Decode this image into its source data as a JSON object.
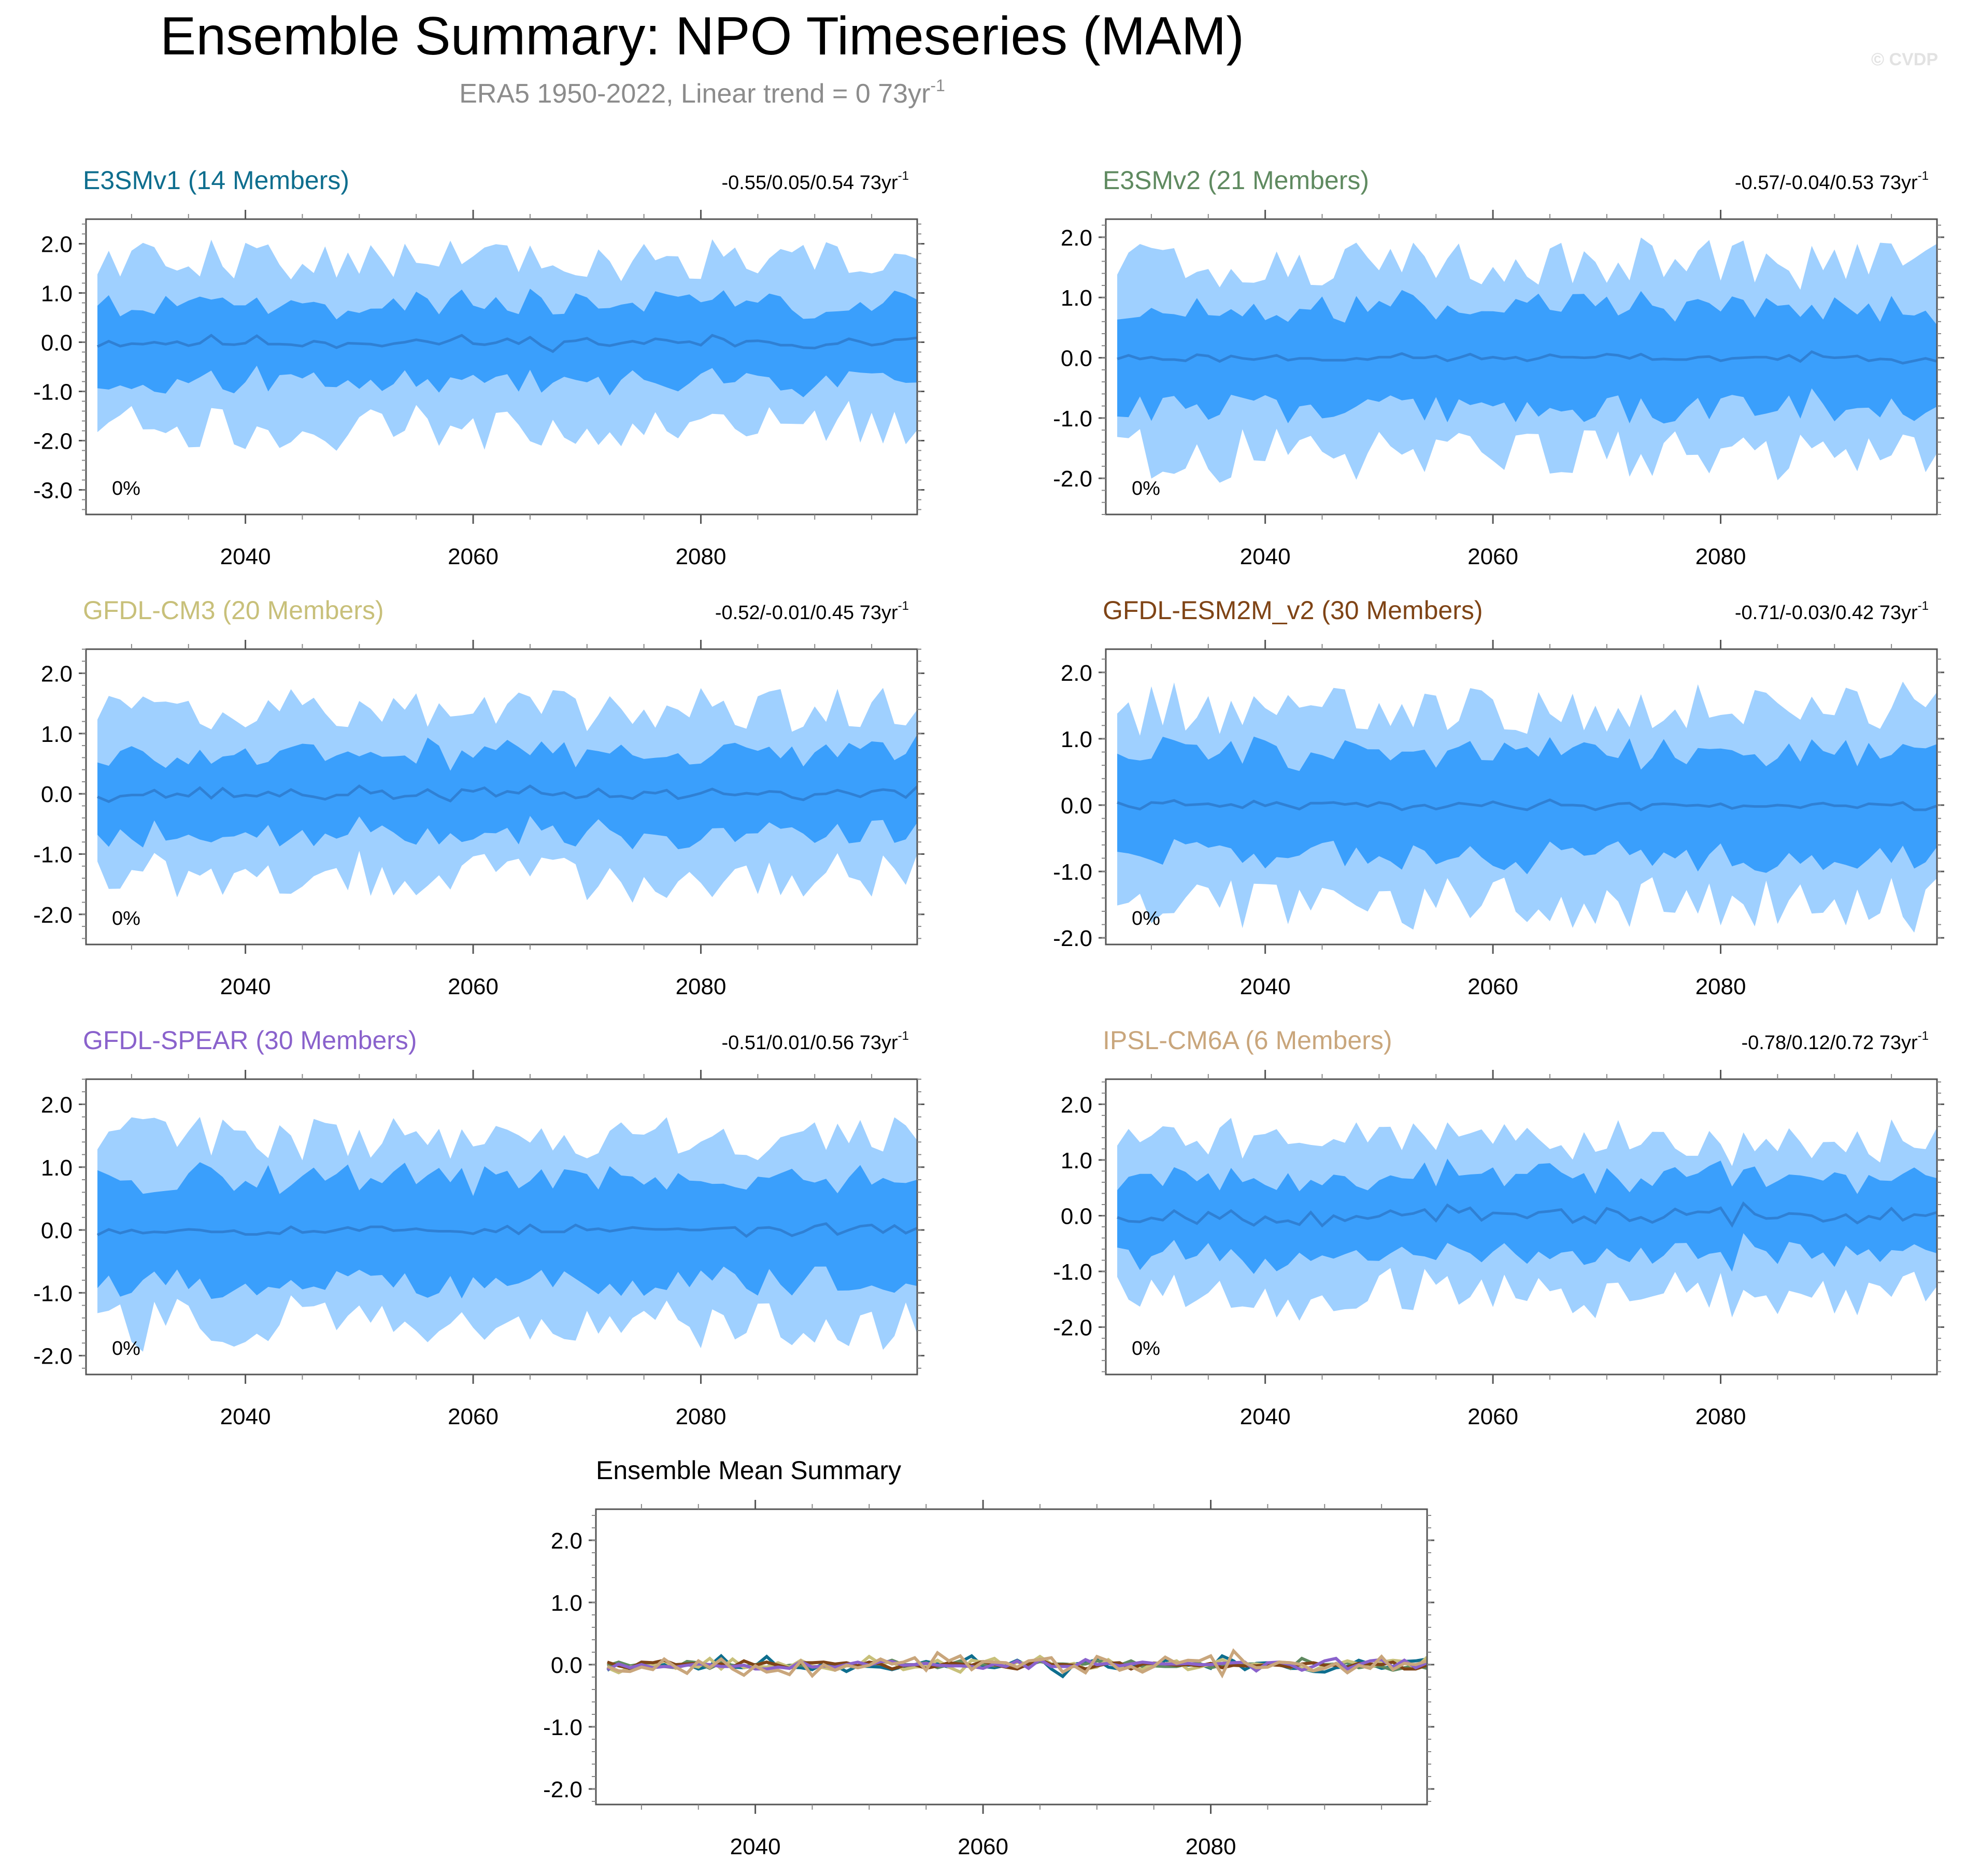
{
  "title": "Ensemble Summary: NPO Timeseries (MAM)",
  "subtitle": "ERA5 1950-2022, Linear trend = 0 73yr",
  "subtitle_sup": "-1",
  "watermark": "© CVDP",
  "colors": {
    "outer_band": "#9fd0ff",
    "inner_band": "#3a9ffc",
    "mean_line": "#2f80d4",
    "title": "#000000",
    "subtitle": "#8c8c8c",
    "watermark": "#e2e2e2"
  },
  "chart_data": [
    {
      "type": "area",
      "name": "E3SMv1",
      "title": "E3SMv1 (14 Members)",
      "title_color": "#0e6e8e",
      "stats": "-0.55/0.05/0.54 73yr",
      "stats_sup": "-1",
      "pct_label": "0%",
      "xlim": [
        2026,
        2099
      ],
      "ylim": [
        -3.5,
        2.5
      ],
      "yticks": [
        2.0,
        1.0,
        0.0,
        -1.0,
        -2.0,
        -3.0
      ],
      "ytick_labels": [
        "2.0",
        "1.0",
        "0.0",
        "-1.0",
        "-2.0",
        "-3.0"
      ],
      "xticks": [
        2040,
        2060,
        2080
      ],
      "xtick_labels": [
        "2040",
        "2060",
        "2080"
      ],
      "years_start": 2027,
      "years_end": 2099,
      "spread_outer": 1.55,
      "spread_inner": 0.75,
      "mean_amp": 0.12,
      "seed": 11
    },
    {
      "type": "area",
      "name": "E3SMv2",
      "title": "E3SMv2 (21 Members)",
      "title_color": "#5f8a60",
      "stats": "-0.57/-0.04/0.53 73yr",
      "stats_sup": "-1",
      "pct_label": "0%",
      "xlim": [
        2026,
        2099
      ],
      "ylim": [
        -2.6,
        2.3
      ],
      "yticks": [
        2.0,
        1.0,
        0.0,
        -1.0,
        -2.0
      ],
      "ytick_labels": [
        "2.0",
        "1.0",
        "0.0",
        "-1.0",
        "-2.0"
      ],
      "xticks": [
        2040,
        2060,
        2080
      ],
      "xtick_labels": [
        "2040",
        "2060",
        "2080"
      ],
      "years_start": 2027,
      "years_end": 2099,
      "spread_outer": 1.45,
      "spread_inner": 0.8,
      "mean_amp": 0.06,
      "seed": 23
    },
    {
      "type": "area",
      "name": "GFDL-CM3",
      "title": "GFDL-CM3 (20 Members)",
      "title_color": "#c8c07a",
      "stats": "-0.52/-0.01/0.45 73yr",
      "stats_sup": "-1",
      "pct_label": "0%",
      "xlim": [
        2026,
        2099
      ],
      "ylim": [
        -2.5,
        2.4
      ],
      "yticks": [
        2.0,
        1.0,
        0.0,
        -1.0,
        -2.0
      ],
      "ytick_labels": [
        "2.0",
        "1.0",
        "0.0",
        "-1.0",
        "-2.0"
      ],
      "xticks": [
        2040,
        2060,
        2080
      ],
      "xtick_labels": [
        "2040",
        "2060",
        "2080"
      ],
      "years_start": 2027,
      "years_end": 2099,
      "spread_outer": 1.3,
      "spread_inner": 0.65,
      "mean_amp": 0.1,
      "seed": 37
    },
    {
      "type": "area",
      "name": "GFDL-ESM2M_v2",
      "title": "GFDL-ESM2M_v2 (30 Members)",
      "title_color": "#7f4416",
      "stats": "-0.71/-0.03/0.42 73yr",
      "stats_sup": "-1",
      "pct_label": "0%",
      "xlim": [
        2026,
        2099
      ],
      "ylim": [
        -2.1,
        2.35
      ],
      "yticks": [
        2.0,
        1.0,
        0.0,
        -1.0,
        -2.0
      ],
      "ytick_labels": [
        "2.0",
        "1.0",
        "0.0",
        "-1.0",
        "-2.0"
      ],
      "xticks": [
        2040,
        2060,
        2080
      ],
      "xtick_labels": [
        "2040",
        "2060",
        "2080"
      ],
      "years_start": 2027,
      "years_end": 2099,
      "spread_outer": 1.35,
      "spread_inner": 0.75,
      "mean_amp": 0.06,
      "seed": 41
    },
    {
      "type": "area",
      "name": "GFDL-SPEAR",
      "title": "GFDL-SPEAR (30 Members)",
      "title_color": "#8a62cc",
      "stats": "-0.51/0.01/0.56 73yr",
      "stats_sup": "-1",
      "pct_label": "0%",
      "xlim": [
        2026,
        2099
      ],
      "ylim": [
        -2.3,
        2.4
      ],
      "yticks": [
        2.0,
        1.0,
        0.0,
        -1.0,
        -2.0
      ],
      "ytick_labels": [
        "2.0",
        "1.0",
        "0.0",
        "-1.0",
        "-2.0"
      ],
      "xticks": [
        2040,
        2060,
        2080
      ],
      "xtick_labels": [
        "2040",
        "2060",
        "2080"
      ],
      "years_start": 2027,
      "years_end": 2099,
      "spread_outer": 1.35,
      "spread_inner": 0.8,
      "mean_amp": 0.07,
      "seed": 53
    },
    {
      "type": "area",
      "name": "IPSL-CM6A",
      "title": "IPSL-CM6A (6 Members)",
      "title_color": "#c9a67c",
      "stats": "-0.78/0.12/0.72 73yr",
      "stats_sup": "-1",
      "pct_label": "0%",
      "xlim": [
        2026,
        2099
      ],
      "ylim": [
        -2.85,
        2.45
      ],
      "yticks": [
        2.0,
        1.0,
        0.0,
        -1.0,
        -2.0
      ],
      "ytick_labels": [
        "2.0",
        "1.0",
        "0.0",
        "-1.0",
        "-2.0"
      ],
      "xticks": [
        2040,
        2060,
        2080
      ],
      "xtick_labels": [
        "2040",
        "2060",
        "2080"
      ],
      "years_start": 2027,
      "years_end": 2099,
      "spread_outer": 1.25,
      "spread_inner": 0.65,
      "mean_amp": 0.14,
      "seed": 67
    },
    {
      "type": "line",
      "name": "Ensemble Mean Summary",
      "title": "Ensemble Mean Summary",
      "title_color": "#000000",
      "xlim": [
        2026,
        2099
      ],
      "ylim": [
        -2.25,
        2.5
      ],
      "yticks": [
        2.0,
        1.0,
        0.0,
        -1.0,
        -2.0
      ],
      "ytick_labels": [
        "2.0",
        "1.0",
        "0.0",
        "-1.0",
        "-2.0"
      ],
      "xticks": [
        2040,
        2060,
        2080
      ],
      "xtick_labels": [
        "2040",
        "2060",
        "2080"
      ],
      "years_start": 2027,
      "years_end": 2099,
      "series": [
        {
          "name": "E3SMv1",
          "color": "#0e6e8e",
          "amp": 0.12,
          "seed": 11
        },
        {
          "name": "E3SMv2",
          "color": "#5f8a60",
          "amp": 0.06,
          "seed": 23
        },
        {
          "name": "GFDL-CM3",
          "color": "#c8c07a",
          "amp": 0.1,
          "seed": 37
        },
        {
          "name": "GFDL-ESM2M_v2",
          "color": "#7f4416",
          "amp": 0.06,
          "seed": 41
        },
        {
          "name": "GFDL-SPEAR",
          "color": "#8a62cc",
          "amp": 0.07,
          "seed": 53
        },
        {
          "name": "IPSL-CM6A",
          "color": "#c9a67c",
          "amp": 0.14,
          "seed": 67
        }
      ]
    }
  ]
}
